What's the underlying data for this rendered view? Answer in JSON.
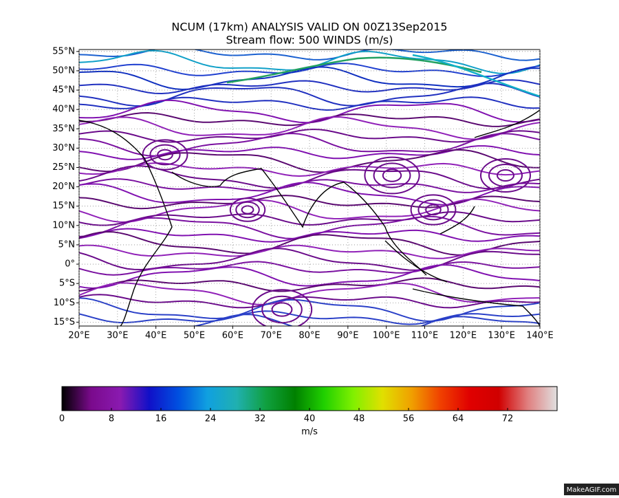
{
  "chart_data": {
    "type": "streamflow-map",
    "title": "NCUM (17km) ANALYSIS VALID ON 00Z13Sep2015",
    "subtitle": "Stream flow: 500 WINDS (m/s)",
    "xlim": [
      20,
      140
    ],
    "ylim": [
      -16,
      55.5
    ],
    "xticks": [
      {
        "value": 20,
        "label": "20°E"
      },
      {
        "value": 30,
        "label": "30°E"
      },
      {
        "value": 40,
        "label": "40°E"
      },
      {
        "value": 50,
        "label": "50°E"
      },
      {
        "value": 60,
        "label": "60°E"
      },
      {
        "value": 70,
        "label": "70°E"
      },
      {
        "value": 80,
        "label": "80°E"
      },
      {
        "value": 90,
        "label": "90°E"
      },
      {
        "value": 100,
        "label": "100°E"
      },
      {
        "value": 110,
        "label": "110°E"
      },
      {
        "value": 120,
        "label": "120°E"
      },
      {
        "value": 130,
        "label": "130°E"
      },
      {
        "value": 140,
        "label": "140°E"
      }
    ],
    "yticks": [
      {
        "value": 55,
        "label": "55°N"
      },
      {
        "value": 50,
        "label": "50°N"
      },
      {
        "value": 45,
        "label": "45°N"
      },
      {
        "value": 40,
        "label": "40°N"
      },
      {
        "value": 35,
        "label": "35°N"
      },
      {
        "value": 30,
        "label": "30°N"
      },
      {
        "value": 25,
        "label": "25°N"
      },
      {
        "value": 20,
        "label": "20°N"
      },
      {
        "value": 15,
        "label": "15°N"
      },
      {
        "value": 10,
        "label": "10°N"
      },
      {
        "value": 5,
        "label": "5°N"
      },
      {
        "value": 0,
        "label": "0°"
      },
      {
        "value": -5,
        "label": "5°S"
      },
      {
        "value": -10,
        "label": "10°S"
      },
      {
        "value": -15,
        "label": "15°S"
      }
    ],
    "colorbar": {
      "lim": [
        0,
        80
      ],
      "ticks": [
        0,
        8,
        16,
        24,
        32,
        40,
        48,
        56,
        64,
        72
      ],
      "label": "m/s",
      "colors": [
        "#000000",
        "#7a0a8c",
        "#8a1ab0",
        "#1010c8",
        "#0050e0",
        "#10a0e0",
        "#20b0b0",
        "#10a040",
        "#008000",
        "#20d000",
        "#80f000",
        "#e0e000",
        "#f0a000",
        "#f04000",
        "#e00000",
        "#d00000",
        "#e08080",
        "#e0e0e0"
      ]
    }
  },
  "watermark": "MakeAGIF.com"
}
